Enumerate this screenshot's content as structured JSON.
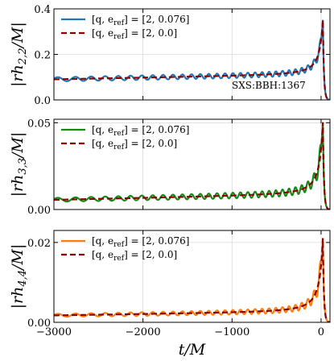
{
  "chart_data": [
    {
      "type": "line",
      "ylabel": "|rh2,2/M|",
      "ylabel_parts": {
        "main": "|rh",
        "sub": "2,2",
        "tail": "/M|"
      },
      "xlim": [
        -3000,
        100
      ],
      "ylim": [
        0,
        0.4
      ],
      "yticks": [
        0.0,
        0.2,
        0.4
      ],
      "ytick_labels": [
        "0.0",
        "0.2",
        "0.4"
      ],
      "xticks": [
        -3000,
        -2000,
        -1000,
        0
      ],
      "grid": true,
      "legend_position": "top-left",
      "annotation": "SXS:BBH:1367",
      "series": [
        {
          "name": "[q, eref] = [2, 0.076]",
          "label_q": "[q, e",
          "label_sub": "ref",
          "label_val": "] = [2, 0.076]",
          "color": "#1f77b4",
          "style": "solid",
          "eccentric": true,
          "base_start": 0.09,
          "base_mid": 0.11,
          "peak": 0.35,
          "amp": 0.1
        },
        {
          "name": "[q, eref] = [2, 0.0]",
          "label_q": "[q, e",
          "label_sub": "ref",
          "label_val": "] = [2, 0.0]",
          "color": "#8b0000",
          "style": "dashed",
          "eccentric": false,
          "base_start": 0.09,
          "base_mid": 0.11,
          "peak": 0.35,
          "amp": 0
        }
      ]
    },
    {
      "type": "line",
      "ylabel": "|rh3,3/M|",
      "ylabel_parts": {
        "main": "|rh",
        "sub": "3,3",
        "tail": "/M|"
      },
      "xlim": [
        -3000,
        100
      ],
      "ylim": [
        0,
        0.052
      ],
      "yticks": [
        0.0,
        0.05
      ],
      "ytick_labels": [
        "0.00",
        "0.05"
      ],
      "xticks": [
        -3000,
        -2000,
        -1000,
        0
      ],
      "grid": true,
      "legend_position": "top-left",
      "series": [
        {
          "name": "[q, eref] = [2, 0.076]",
          "label_q": "[q, e",
          "label_sub": "ref",
          "label_val": "] = [2, 0.076]",
          "color": "#138a13",
          "style": "solid",
          "eccentric": true,
          "base_start": 0.0055,
          "base_mid": 0.0085,
          "peak": 0.05,
          "amp": 0.2
        },
        {
          "name": "[q, eref] = [2, 0.0]",
          "label_q": "[q, e",
          "label_sub": "ref",
          "label_val": "] = [2, 0.0]",
          "color": "#8b0000",
          "style": "dashed",
          "eccentric": false,
          "base_start": 0.0055,
          "base_mid": 0.0085,
          "peak": 0.05,
          "amp": 0
        }
      ]
    },
    {
      "type": "line",
      "ylabel": "|rh4,4/M|",
      "ylabel_parts": {
        "main": "|rh",
        "sub": "4,4",
        "tail": "/M|"
      },
      "xlim": [
        -3000,
        100
      ],
      "ylim": [
        0,
        0.023
      ],
      "yticks": [
        0.0,
        0.02
      ],
      "ytick_labels": [
        "0.00",
        "0.02"
      ],
      "xticks": [
        -3000,
        -2000,
        -1000,
        0
      ],
      "xtick_labels": [
        "−3000",
        "−2000",
        "−1000",
        "0"
      ],
      "xlabel": "t/M",
      "grid": true,
      "legend_position": "top-left",
      "series": [
        {
          "name": "[q, eref] = [2, 0.076]",
          "label_q": "[q, e",
          "label_sub": "ref",
          "label_val": "] = [2, 0.076]",
          "color": "#ff7f0e",
          "style": "solid",
          "eccentric": true,
          "base_start": 0.0017,
          "base_mid": 0.0026,
          "peak": 0.021,
          "amp": 0.22
        },
        {
          "name": "[q, eref] = [2, 0.0]",
          "label_q": "[q, e",
          "label_sub": "ref",
          "label_val": "] = [2, 0.0]",
          "color": "#8b0000",
          "style": "dashed",
          "eccentric": false,
          "base_start": 0.0017,
          "base_mid": 0.0026,
          "peak": 0.021,
          "amp": 0
        }
      ]
    }
  ]
}
